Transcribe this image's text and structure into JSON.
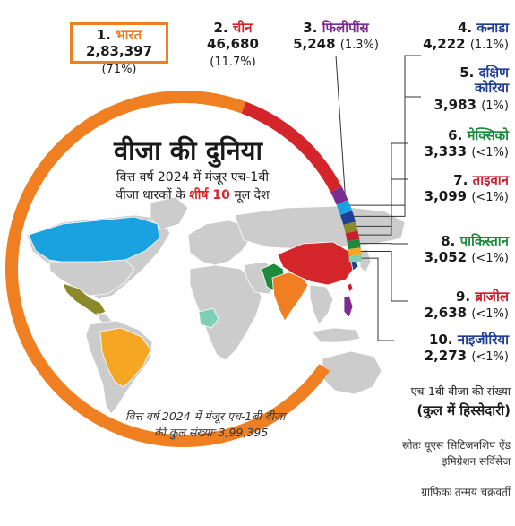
{
  "header": {
    "title": "वीजा की दुनिया",
    "subtitle_line1": "वित्त वर्ष 2024 में मंजूर एच-1बी",
    "subtitle_line2_pre": "वीजा धारकों के ",
    "subtitle_line2_highlight": "शीर्ष 10",
    "subtitle_line2_post": " मूल देश"
  },
  "footer": {
    "total_line1": "वित्त वर्ष 2024 में मंजूर एच-1बी वीजा",
    "total_line2": "की कुल संख्याः 3,99,395",
    "legend_line1": "एच-1बी वीजा की संख्या",
    "legend_line2": "(कुल में हिस्सेदारी)",
    "source_line1": "स्रोतः यूएस सिटिजनशिप ऐंड",
    "source_line2": "इमिग्रेशन सर्विसेज",
    "credit": "ग्राफिकः तन्मय चक्रवर्ती"
  },
  "colors": {
    "india": "#f07f22",
    "china": "#d4262a",
    "philippines": "#7b2c8f",
    "canada": "#1aa1e0",
    "south_korea": "#1e3f95",
    "mexico": "#8a8a2a",
    "taiwan": "#c8202f",
    "pakistan": "#1e8a3e",
    "brazil": "#f5a623",
    "nigeria": "#7fcfb6",
    "map_gray": "#cccccc"
  },
  "chart_data": {
    "type": "pie",
    "title": "वीजा की दुनिया",
    "total": 399395,
    "categories": [
      "भारत",
      "चीन",
      "फिलीपींस",
      "कनाडा",
      "दक्षिण कोरिया",
      "मेक्सिको",
      "ताइवान",
      "पाकिस्तान",
      "ब्राजील",
      "नाइजीरिया"
    ],
    "values": [
      283397,
      46680,
      5248,
      4222,
      3983,
      3333,
      3099,
      3052,
      2638,
      2273
    ],
    "share_labels": [
      "71%",
      "11.7%",
      "1.3%",
      "1.1%",
      "1%",
      "<1%",
      "<1%",
      "<1%",
      "<1%",
      "<1%"
    ],
    "items": [
      {
        "rank": "1.",
        "name": "भारत",
        "value_label": "2,83,397",
        "share": "(71%)"
      },
      {
        "rank": "2.",
        "name": "चीन",
        "value_label": "46,680",
        "share": "(11.7%)"
      },
      {
        "rank": "3.",
        "name": "फिलीपींस",
        "value_label": "5,248",
        "share": "(1.3%)"
      },
      {
        "rank": "4.",
        "name": "कनाडा",
        "value_label": "4,222",
        "share": "(1.1%)"
      },
      {
        "rank": "5.",
        "name": "दक्षिण कोरिया",
        "name_line1": "दक्षिण",
        "name_line2": "कोरिया",
        "value_label": "3,983",
        "share": "(1%)"
      },
      {
        "rank": "6.",
        "name": "मेक्सिको",
        "value_label": "3,333",
        "share": "(<1%)"
      },
      {
        "rank": "7.",
        "name": "ताइवान",
        "value_label": "3,099",
        "share": "(<1%)"
      },
      {
        "rank": "8.",
        "name": "पाकिस्तान",
        "value_label": "3,052",
        "share": "(<1%)"
      },
      {
        "rank": "9.",
        "name": "ब्राजील",
        "value_label": "2,638",
        "share": "(<1%)"
      },
      {
        "rank": "10.",
        "name": "नाइजीरिया",
        "value_label": "2,273",
        "share": "(<1%)"
      }
    ],
    "rank_colors": [
      "#f07f22",
      "#d4262a",
      "#7b2c8f",
      "#1e3f95",
      "#1e3f95",
      "#1e8a3e",
      "#c8202f",
      "#1e8a3e",
      "#c8202f",
      "#1e3f95"
    ]
  }
}
